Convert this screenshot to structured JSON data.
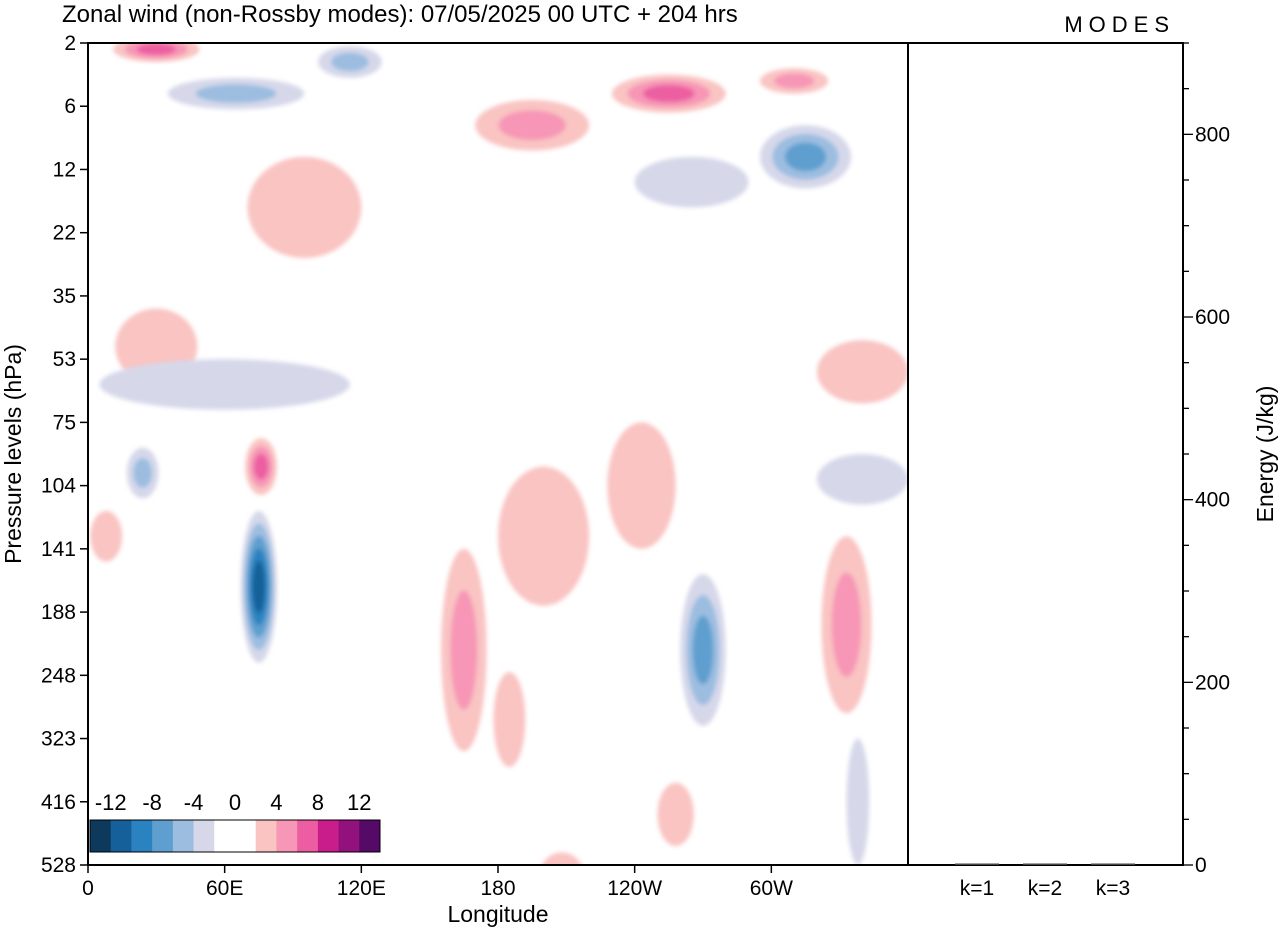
{
  "header": {
    "title": "Zonal wind (non-Rossby modes):  07/05/2025  00 UTC  + 204 hrs",
    "logo": "MODES"
  },
  "chart_data": [
    {
      "type": "heatmap",
      "xlabel": "Longitude",
      "ylabel": "Pressure levels (hPa)",
      "x_ticks": [
        "0",
        "60E",
        "120E",
        "180",
        "120W",
        "60W"
      ],
      "x_tick_degrees": [
        0,
        60,
        120,
        180,
        240,
        300
      ],
      "xlim": [
        0,
        360
      ],
      "y_ticks": [
        "2",
        "6",
        "12",
        "22",
        "35",
        "53",
        "75",
        "104",
        "141",
        "188",
        "248",
        "323",
        "416",
        "528"
      ],
      "y_scale": "level-index",
      "colorbar": {
        "labels": [
          "-12",
          "-8",
          "-4",
          "0",
          "4",
          "8",
          "12"
        ],
        "colors": [
          "#0d3a5c",
          "#15609a",
          "#2a82c0",
          "#5e9fcf",
          "#9cbde0",
          "#d6d8ea",
          "#ffffff",
          "#ffffff",
          "#f9c4c2",
          "#f796b6",
          "#ec5ea1",
          "#c81d8a",
          "#93117c",
          "#560a68"
        ],
        "placement": "bottom-left"
      },
      "features": [
        {
          "lon": 75,
          "level": 8.6,
          "value": -12,
          "lon_width": 16,
          "level_height": 2.4
        },
        {
          "lon": 76,
          "level": 6.7,
          "value": 8,
          "lon_width": 14,
          "level_height": 0.9
        },
        {
          "lon": 30,
          "level": 0.1,
          "value": 8,
          "lon_width": 38,
          "level_height": 0.4
        },
        {
          "lon": 65,
          "level": 0.8,
          "value": -6,
          "lon_width": 60,
          "level_height": 0.5
        },
        {
          "lon": 115,
          "level": 0.3,
          "value": -6,
          "lon_width": 28,
          "level_height": 0.5
        },
        {
          "lon": 195,
          "level": 1.3,
          "value": 6,
          "lon_width": 50,
          "level_height": 0.8
        },
        {
          "lon": 255,
          "level": 0.8,
          "value": 8,
          "lon_width": 50,
          "level_height": 0.6
        },
        {
          "lon": 310,
          "level": 0.6,
          "value": 6,
          "lon_width": 30,
          "level_height": 0.4
        },
        {
          "lon": 315,
          "level": 1.8,
          "value": -8,
          "lon_width": 40,
          "level_height": 1.0
        },
        {
          "lon": 165,
          "level": 9.6,
          "value": 6,
          "lon_width": 20,
          "level_height": 3.2
        },
        {
          "lon": 200,
          "level": 7.8,
          "value": 4,
          "lon_width": 40,
          "level_height": 2.2
        },
        {
          "lon": 243,
          "level": 7.0,
          "value": 4,
          "lon_width": 30,
          "level_height": 2.0
        },
        {
          "lon": 270,
          "level": 9.6,
          "value": -8,
          "lon_width": 20,
          "level_height": 2.4
        },
        {
          "lon": 333,
          "level": 9.2,
          "value": 6,
          "lon_width": 22,
          "level_height": 2.8
        },
        {
          "lon": 30,
          "level": 4.8,
          "value": 4,
          "lon_width": 36,
          "level_height": 1.2
        },
        {
          "lon": 60,
          "level": 5.4,
          "value": -4,
          "lon_width": 110,
          "level_height": 0.8
        },
        {
          "lon": 24,
          "level": 6.8,
          "value": -6,
          "lon_width": 14,
          "level_height": 0.8
        },
        {
          "lon": 95,
          "level": 2.6,
          "value": 4,
          "lon_width": 50,
          "level_height": 1.6
        },
        {
          "lon": 340,
          "level": 5.2,
          "value": 4,
          "lon_width": 40,
          "level_height": 1.0
        },
        {
          "lon": 340,
          "level": 6.9,
          "value": -4,
          "lon_width": 40,
          "level_height": 0.8
        },
        {
          "lon": 265,
          "level": 2.2,
          "value": -4,
          "lon_width": 50,
          "level_height": 0.8
        },
        {
          "lon": 258,
          "level": 12.2,
          "value": 4,
          "lon_width": 16,
          "level_height": 1.0
        },
        {
          "lon": 208,
          "level": 13.2,
          "value": 4,
          "lon_width": 20,
          "level_height": 0.8
        },
        {
          "lon": 338,
          "level": 12.0,
          "value": -4,
          "lon_width": 10,
          "level_height": 2.0
        },
        {
          "lon": 8,
          "level": 7.8,
          "value": 4,
          "lon_width": 14,
          "level_height": 0.8
        },
        {
          "lon": 185,
          "level": 10.7,
          "value": 4,
          "lon_width": 14,
          "level_height": 1.5
        }
      ]
    },
    {
      "type": "bar",
      "categories": [
        "k=1",
        "k=2",
        "k=3"
      ],
      "values": [
        1,
        1,
        1
      ],
      "ylabel": "Energy (J/kg)",
      "ylim": [
        0,
        900
      ],
      "y_ticks": [
        0,
        200,
        400,
        600,
        800
      ],
      "y_minor_step": 50
    }
  ]
}
